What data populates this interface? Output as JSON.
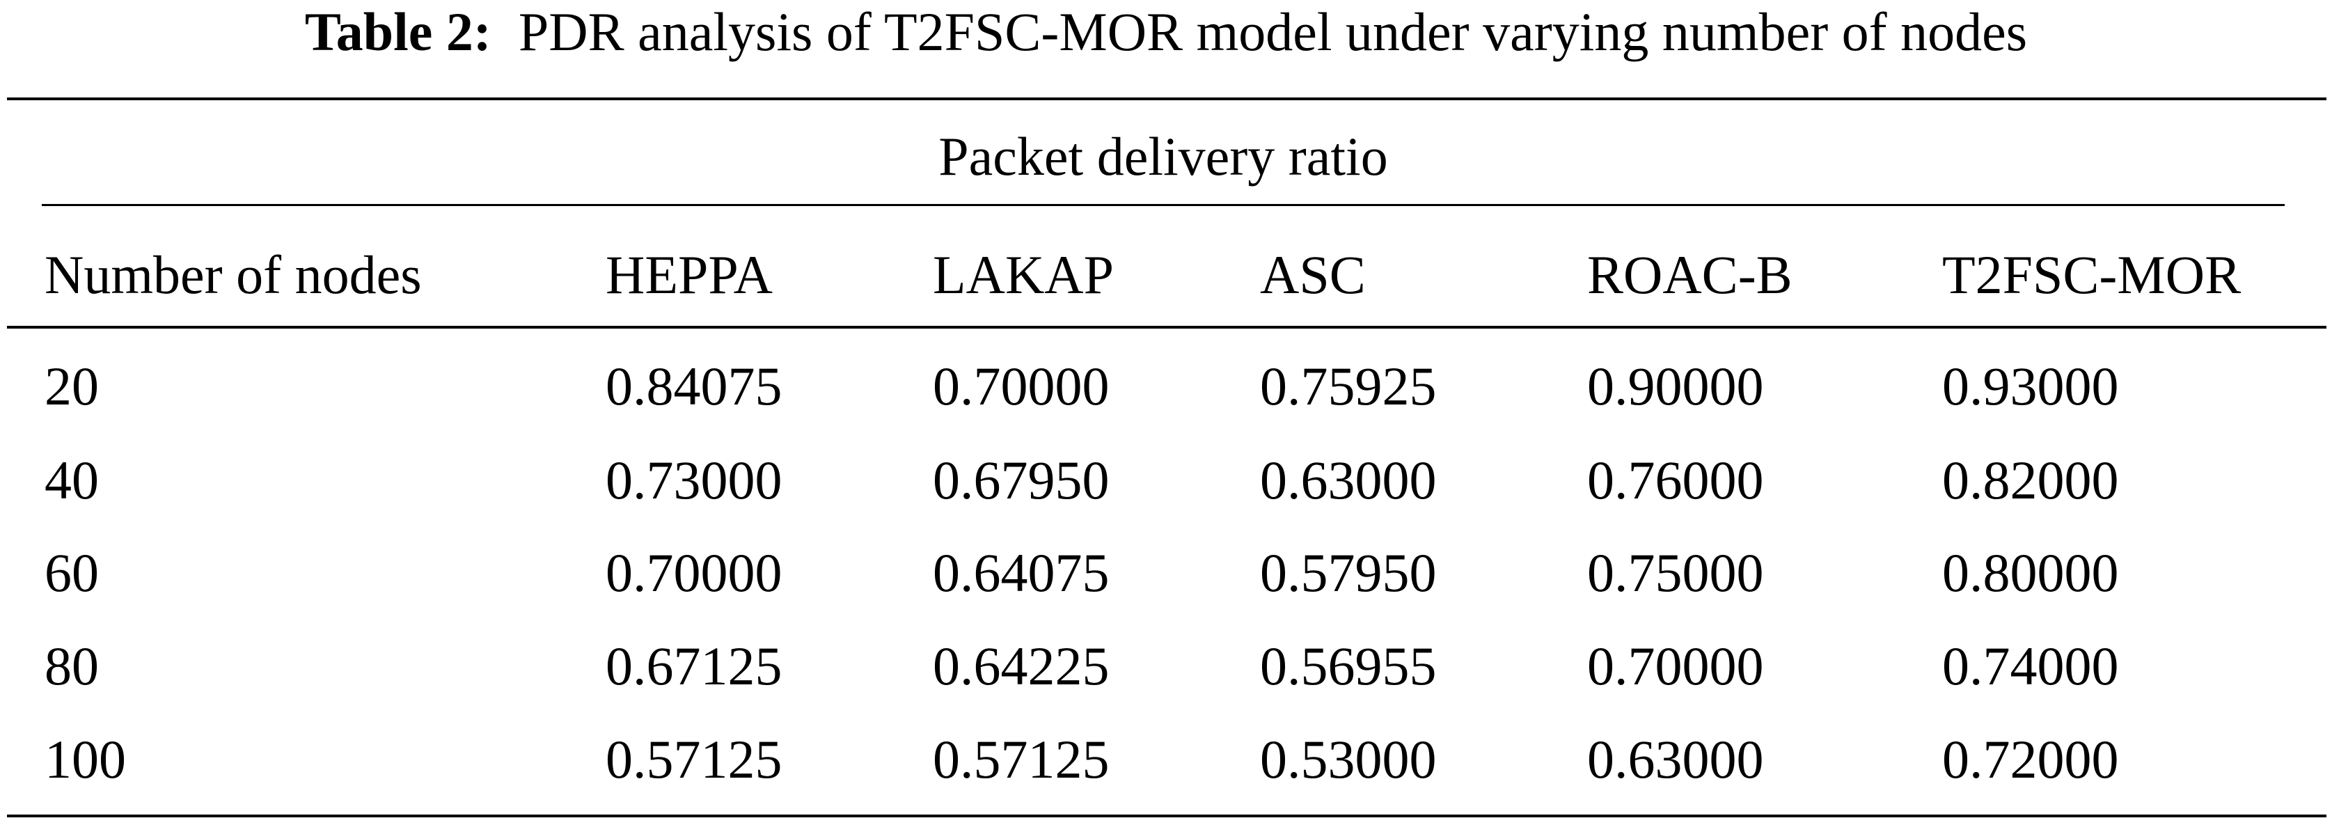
{
  "caption": {
    "label": "Table 2:",
    "text": "PDR analysis of T2FSC-MOR model under varying number of nodes"
  },
  "table": {
    "group_header": "Packet delivery ratio",
    "columns": [
      "Number of nodes",
      "HEPPA",
      "LAKAP",
      "ASC",
      "ROAC-B",
      "T2FSC-MOR"
    ],
    "rows": [
      [
        "20",
        "0.84075",
        "0.70000",
        "0.75925",
        "0.90000",
        "0.93000"
      ],
      [
        "40",
        "0.73000",
        "0.67950",
        "0.63000",
        "0.76000",
        "0.82000"
      ],
      [
        "60",
        "0.70000",
        "0.64075",
        "0.57950",
        "0.75000",
        "0.80000"
      ],
      [
        "80",
        "0.67125",
        "0.64225",
        "0.56955",
        "0.70000",
        "0.74000"
      ],
      [
        "100",
        "0.57125",
        "0.57125",
        "0.53000",
        "0.63000",
        "0.72000"
      ]
    ]
  }
}
